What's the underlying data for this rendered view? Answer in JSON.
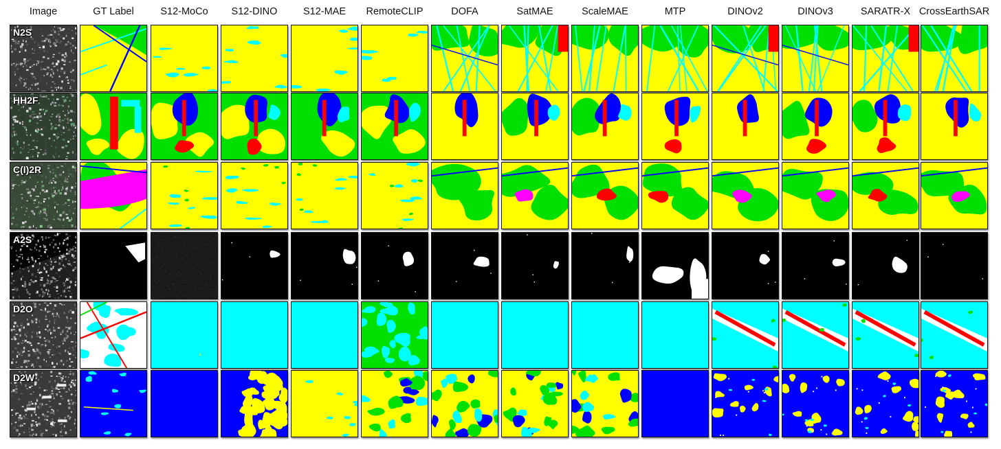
{
  "columns": [
    "Image",
    "GT Label",
    "S12-MoCo",
    "S12-DINO",
    "S12-MAE",
    "RemoteCLIP",
    "DOFA",
    "SatMAE",
    "ScaleMAE",
    "MTP",
    "DINOv2",
    "DINOv3",
    "SARATR-X",
    "CrossEarthSAR"
  ],
  "rows": [
    {
      "label": "N2S",
      "cells": [
        "sar",
        "gt",
        "yel",
        "yel",
        "yel",
        "yel",
        "grn",
        "grn",
        "grn",
        "grn",
        "grn",
        "grn",
        "grn",
        "grn"
      ]
    },
    {
      "label": "HH2F",
      "cells": [
        "sar",
        "gt",
        "hh",
        "hh",
        "hh",
        "hh",
        "hh",
        "hh",
        "hh",
        "hh",
        "hh",
        "hh",
        "hh",
        "hh"
      ]
    },
    {
      "label": "C(I)2R",
      "cells": [
        "sar",
        "gt",
        "yel",
        "yel",
        "yel",
        "yel",
        "ci",
        "ci",
        "ci",
        "ci",
        "ci",
        "ci",
        "ci",
        "ci"
      ]
    },
    {
      "label": "A2S",
      "cells": [
        "sar",
        "gt",
        "noise",
        "blk",
        "blk",
        "blk",
        "blk",
        "blk",
        "blk",
        "mtp",
        "blk",
        "blk",
        "blk",
        "blk"
      ]
    },
    {
      "label": "D2O",
      "cells": [
        "sar",
        "gt",
        "cyan",
        "cyan",
        "cyan",
        "rclip",
        "cyan",
        "cyan",
        "cyan",
        "cyan",
        "d2o",
        "d2o",
        "d2o",
        "d2o"
      ]
    },
    {
      "label": "D2W",
      "cells": [
        "sar",
        "gt",
        "blue",
        "dino",
        "yel2",
        "mix",
        "mix",
        "mix",
        "mix",
        "blue",
        "dwv",
        "dwv",
        "dwv",
        "dwv"
      ]
    }
  ],
  "colors": {
    "yellow": "#ffff00",
    "green": "#00e000",
    "cyan": "#00ffff",
    "blue": "#0000ff",
    "red": "#ff0000",
    "magenta": "#ff00ff",
    "white": "#ffffff",
    "black": "#000000"
  }
}
